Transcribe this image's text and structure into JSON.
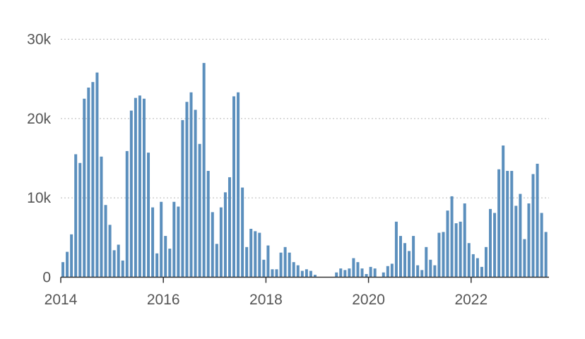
{
  "chart_data": {
    "type": "bar",
    "title": "",
    "xlabel": "",
    "ylabel": "",
    "bar_color": "#5b8fbd",
    "ylim": [
      0,
      30000
    ],
    "y_ticks": [
      {
        "value": 0,
        "label": "0"
      },
      {
        "value": 10000,
        "label": "10k"
      },
      {
        "value": 20000,
        "label": "20k"
      },
      {
        "value": 30000,
        "label": "30k"
      }
    ],
    "x_ticks": [
      {
        "value": "2014-01",
        "label": "2014"
      },
      {
        "value": "2016-01",
        "label": "2016"
      },
      {
        "value": "2018-01",
        "label": "2018"
      },
      {
        "value": "2020-01",
        "label": "2020"
      },
      {
        "value": "2022-01",
        "label": "2022"
      }
    ],
    "grid": true,
    "x_start": "2014-01",
    "values": [
      1900,
      3200,
      5400,
      15500,
      14400,
      22500,
      23900,
      24600,
      25800,
      15200,
      9100,
      6600,
      3400,
      4100,
      2100,
      15900,
      21000,
      22600,
      22900,
      22500,
      15700,
      8800,
      3000,
      9500,
      5200,
      3600,
      9500,
      8900,
      19800,
      22100,
      23300,
      21100,
      16800,
      27000,
      13400,
      8200,
      4200,
      8800,
      10700,
      12600,
      22800,
      23300,
      11300,
      3800,
      6100,
      5800,
      5600,
      2200,
      4000,
      1000,
      1000,
      3100,
      3800,
      3100,
      1900,
      1500,
      800,
      1000,
      800,
      300,
      0,
      0,
      0,
      0,
      600,
      1100,
      900,
      1100,
      2400,
      1900,
      1100,
      400,
      1300,
      1100,
      0,
      600,
      1400,
      1700,
      7000,
      5200,
      4300,
      3300,
      5200,
      1500,
      900,
      3800,
      2200,
      1500,
      5600,
      5700,
      8400,
      10200,
      6800,
      7000,
      9300,
      4300,
      2900,
      2400,
      1300,
      3800,
      8600,
      8100,
      13600,
      16600,
      13400,
      13400,
      9000,
      10500,
      4800,
      9300,
      13000,
      14300,
      8100,
      5700
    ]
  }
}
